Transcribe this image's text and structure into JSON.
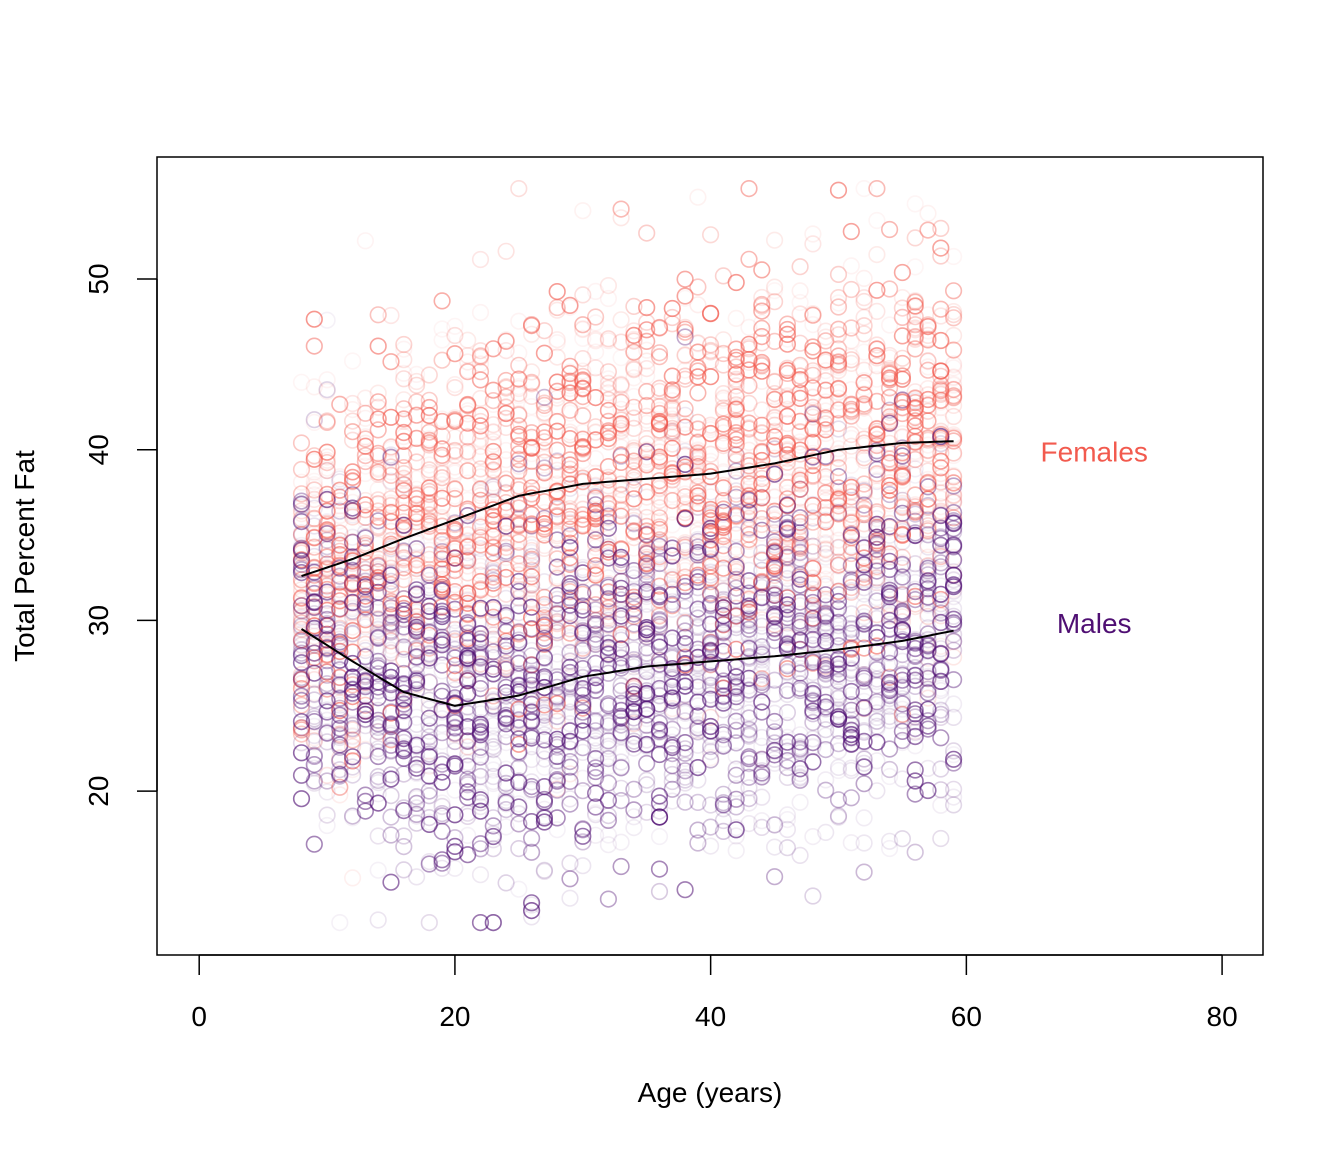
{
  "chart_data": {
    "type": "scatter",
    "title": "",
    "xlabel": "Age (years)",
    "ylabel": "Total Percent Fat",
    "xlim": [
      -3.3,
      83.2
    ],
    "ylim": [
      10.4,
      57.15
    ],
    "xticks": [
      0,
      20,
      40,
      60,
      80
    ],
    "yticks": [
      20,
      30,
      40,
      50
    ],
    "grid": false,
    "age_range": [
      8,
      59
    ],
    "series": [
      {
        "name": "Females",
        "label": "Females",
        "color": "#F25A4E",
        "label_position": {
          "x": 70,
          "y": 39.9
        },
        "smooth": {
          "x": [
            8,
            12,
            16,
            20,
            25,
            30,
            35,
            40,
            45,
            50,
            55,
            59
          ],
          "y": [
            32.6,
            33.6,
            34.8,
            35.9,
            37.3,
            38.0,
            38.3,
            38.6,
            39.2,
            40.0,
            40.4,
            40.5
          ]
        },
        "spread_sd": 5.6,
        "points_per_age": 45
      },
      {
        "name": "Males",
        "label": "Males",
        "color": "#4F0F73",
        "label_position": {
          "x": 70,
          "y": 29.85
        },
        "smooth": {
          "x": [
            8,
            12,
            16,
            20,
            25,
            30,
            35,
            40,
            45,
            50,
            55,
            59
          ],
          "y": [
            29.5,
            27.6,
            25.8,
            25.0,
            25.6,
            26.7,
            27.3,
            27.6,
            27.9,
            28.3,
            28.8,
            29.4
          ]
        },
        "spread_sd": 5.0,
        "points_per_age": 45
      }
    ]
  }
}
